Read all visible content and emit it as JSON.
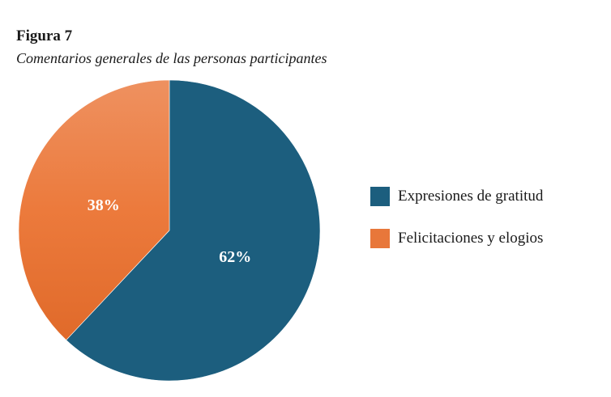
{
  "figure": {
    "number": "Figura 7",
    "caption": "Comentarios generales de las personas participantes"
  },
  "chart_data": {
    "type": "pie",
    "title": "Figura 7",
    "subtitle": "Comentarios generales de las personas participantes",
    "legend_position": "right",
    "slices": [
      {
        "name": "Expresiones de gratitud",
        "value": 62,
        "label": "62%",
        "color": "#1c5e7e"
      },
      {
        "name": "Felicitaciones y elogios",
        "value": 38,
        "label": "38%",
        "color": "#e8773a"
      }
    ]
  }
}
